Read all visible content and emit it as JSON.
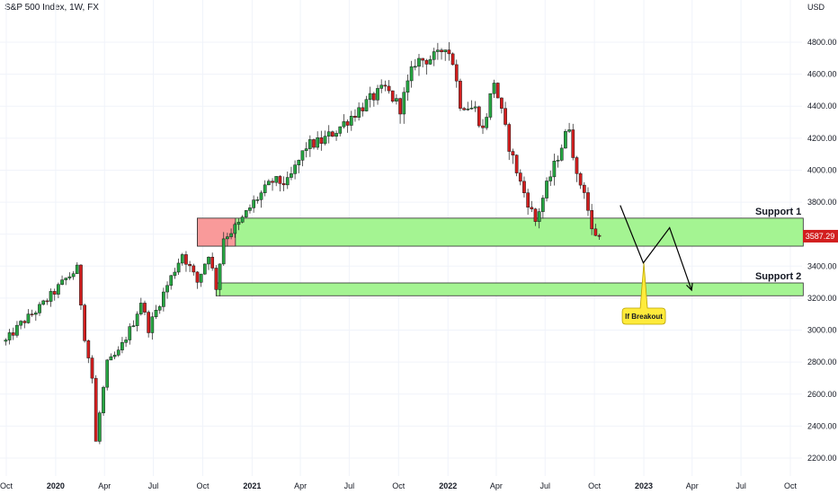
{
  "chart_data": {
    "type": "candlestick",
    "title": "S&P 500 Index, 1W, FX",
    "currency": "USD",
    "y_axis": {
      "ticks": [
        "2200.00",
        "2400.00",
        "2600.00",
        "2800.00",
        "3000.00",
        "3200.00",
        "3400.00",
        "3600.00",
        "3800.00",
        "4000.00",
        "4200.00",
        "4400.00",
        "4600.00",
        "4800.00"
      ],
      "range": [
        2050,
        4950
      ],
      "last_price": "3587.29"
    },
    "x_axis": {
      "ticks": [
        {
          "label": "Oct",
          "date": "2019-10-01",
          "bold": false
        },
        {
          "label": "2020",
          "date": "2020-01-01",
          "bold": true
        },
        {
          "label": "Apr",
          "date": "2020-04-01",
          "bold": false
        },
        {
          "label": "Jul",
          "date": "2020-07-01",
          "bold": false
        },
        {
          "label": "Oct",
          "date": "2020-10-01",
          "bold": false
        },
        {
          "label": "2021",
          "date": "2021-01-01",
          "bold": true
        },
        {
          "label": "Apr",
          "date": "2021-04-01",
          "bold": false
        },
        {
          "label": "Jul",
          "date": "2021-07-01",
          "bold": false
        },
        {
          "label": "Oct",
          "date": "2021-10-01",
          "bold": false
        },
        {
          "label": "2022",
          "date": "2022-01-01",
          "bold": true
        },
        {
          "label": "Apr",
          "date": "2022-04-01",
          "bold": false
        },
        {
          "label": "Jul",
          "date": "2022-07-01",
          "bold": false
        },
        {
          "label": "Oct",
          "date": "2022-10-01",
          "bold": false
        },
        {
          "label": "2023",
          "date": "2023-01-01",
          "bold": true
        },
        {
          "label": "Apr",
          "date": "2023-04-01",
          "bold": false
        },
        {
          "label": "Jul",
          "date": "2023-07-01",
          "bold": false
        },
        {
          "label": "Oct",
          "date": "2023-10-01",
          "bold": false
        }
      ]
    },
    "price_path": [
      [
        "2019-09-30",
        2930
      ],
      [
        "2019-10-28",
        3040
      ],
      [
        "2019-12-02",
        3140
      ],
      [
        "2019-12-30",
        3240
      ],
      [
        "2020-01-20",
        3320
      ],
      [
        "2020-02-10",
        3380
      ],
      [
        "2020-02-24",
        2960
      ],
      [
        "2020-03-09",
        2700
      ],
      [
        "2020-03-16",
        2300
      ],
      [
        "2020-03-23",
        2480
      ],
      [
        "2020-04-06",
        2790
      ],
      [
        "2020-04-27",
        2860
      ],
      [
        "2020-05-25",
        3050
      ],
      [
        "2020-06-08",
        3180
      ],
      [
        "2020-06-22",
        3010
      ],
      [
        "2020-07-20",
        3230
      ],
      [
        "2020-08-24",
        3480
      ],
      [
        "2020-09-21",
        3300
      ],
      [
        "2020-10-12",
        3480
      ],
      [
        "2020-10-26",
        3270
      ],
      [
        "2020-11-09",
        3580
      ],
      [
        "2020-12-07",
        3660
      ],
      [
        "2021-01-04",
        3800
      ],
      [
        "2021-02-08",
        3930
      ],
      [
        "2021-03-08",
        3920
      ],
      [
        "2021-04-12",
        4150
      ],
      [
        "2021-05-10",
        4180
      ],
      [
        "2021-06-07",
        4250
      ],
      [
        "2021-07-12",
        4360
      ],
      [
        "2021-08-16",
        4460
      ],
      [
        "2021-09-06",
        4510
      ],
      [
        "2021-10-04",
        4390
      ],
      [
        "2021-11-01",
        4680
      ],
      [
        "2021-12-13",
        4710
      ],
      [
        "2021-12-27",
        4790
      ],
      [
        "2022-01-10",
        4680
      ],
      [
        "2022-01-24",
        4420
      ],
      [
        "2022-02-21",
        4380
      ],
      [
        "2022-03-07",
        4250
      ],
      [
        "2022-03-28",
        4560
      ],
      [
        "2022-04-25",
        4150
      ],
      [
        "2022-05-16",
        3920
      ],
      [
        "2022-06-13",
        3680
      ],
      [
        "2022-07-04",
        3900
      ],
      [
        "2022-08-15",
        4280
      ],
      [
        "2022-08-29",
        3950
      ],
      [
        "2022-09-12",
        3880
      ],
      [
        "2022-09-26",
        3620
      ],
      [
        "2022-10-10",
        3587
      ]
    ],
    "zones": [
      {
        "type": "supply",
        "from_date": "2020-09-21",
        "to_date": "2020-12-01",
        "from_price": 3525,
        "to_price": 3700,
        "color": "#f99a9a"
      },
      {
        "name": "Support 1",
        "from_date": "2020-09-21",
        "to_date": "2023-10-25",
        "from_price": 3525,
        "to_price": 3700,
        "color": "#a4f492"
      },
      {
        "name": "Support 2",
        "from_date": "2020-10-26",
        "to_date": "2023-10-25",
        "from_price": 3215,
        "to_price": 3295,
        "color": "#a4f492"
      }
    ],
    "projection": [
      [
        "2022-11-18",
        3780
      ],
      [
        "2022-12-31",
        3420
      ],
      [
        "2023-02-18",
        3640
      ],
      [
        "2023-03-31",
        3250
      ]
    ],
    "callout": {
      "text": "If Breakout",
      "pointer_date": "2023-01-01",
      "pointer_price": 3420
    },
    "colors": {
      "up": "#26a642",
      "down": "#d21e1e",
      "wick": "#333333",
      "grid": "#f0f3fa"
    }
  }
}
